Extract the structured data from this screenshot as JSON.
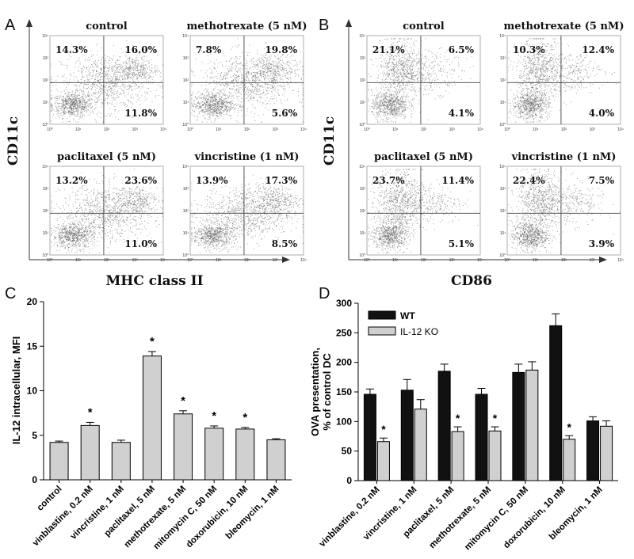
{
  "panel_letters": [
    "A",
    "B",
    "C",
    "D"
  ],
  "chart_data": [
    {
      "panel": "A",
      "type": "scatter",
      "description_axis_y": "CD11c",
      "xlabel": "MHC class II",
      "ylabel": "CD11c",
      "axis_ticks": [
        "10⁰",
        "10¹",
        "10²",
        "10³",
        "10⁴"
      ],
      "subplots": [
        {
          "title": "control",
          "quadrants": {
            "upper_left": "14.3%",
            "upper_right": "16.0%",
            "lower_right": "11.8%"
          }
        },
        {
          "title": "methotrexate (5 nM)",
          "quadrants": {
            "upper_left": "7.8%",
            "upper_right": "19.8%",
            "lower_right": "5.6%"
          }
        },
        {
          "title": "paclitaxel (5 nM)",
          "quadrants": {
            "upper_left": "13.2%",
            "upper_right": "23.6%",
            "lower_right": "11.0%"
          }
        },
        {
          "title": "vincristine (1 nM)",
          "quadrants": {
            "upper_left": "13.9%",
            "upper_right": "17.3%",
            "lower_right": "8.5%"
          }
        }
      ]
    },
    {
      "panel": "B",
      "type": "scatter",
      "xlabel": "CD86",
      "ylabel": "CD11c",
      "axis_ticks": [
        "10⁰",
        "10¹",
        "10²",
        "10³",
        "10⁴"
      ],
      "subplots": [
        {
          "title": "control",
          "quadrants": {
            "upper_left": "21.1%",
            "upper_right": "6.5%",
            "lower_right": "4.1%"
          }
        },
        {
          "title": "methotrexate (5 nM)",
          "quadrants": {
            "upper_left": "10.3%",
            "upper_right": "12.4%",
            "lower_right": "4.0%"
          }
        },
        {
          "title": "paclitaxel (5 nM)",
          "quadrants": {
            "upper_left": "23.7%",
            "upper_right": "11.4%",
            "lower_right": "5.1%"
          }
        },
        {
          "title": "vincristine (1 nM)",
          "quadrants": {
            "upper_left": "22.4%",
            "upper_right": "7.5%",
            "lower_right": "3.9%"
          }
        }
      ]
    },
    {
      "panel": "C",
      "type": "bar",
      "title": "",
      "xlabel": "",
      "ylabel": "IL-12 intracellular, MFI",
      "ylim": [
        0,
        20
      ],
      "yticks": [
        0,
        5,
        10,
        15,
        20
      ],
      "categories": [
        "control",
        "vinblastine, 0.2 nM",
        "vincristine, 1 nM",
        "paclitaxel, 5 nM",
        "methotrexate, 5 nM",
        "mitomycin C, 50 nM",
        "doxorubicin, 10 nM",
        "bleomycin, 1 nM"
      ],
      "values": [
        4.2,
        6.1,
        4.2,
        13.9,
        7.4,
        5.8,
        5.7,
        4.5
      ],
      "errors": [
        0.15,
        0.35,
        0.25,
        0.5,
        0.35,
        0.25,
        0.18,
        0.12
      ],
      "significant": [
        false,
        true,
        false,
        true,
        true,
        true,
        true,
        false
      ],
      "significance_marker": "*",
      "bar_color": "#d0d0d0"
    },
    {
      "panel": "D",
      "type": "bar",
      "title": "",
      "xlabel": "",
      "ylabel": "OVA presentation, % of control DC",
      "ylabel_lines": [
        "OVA presentation,",
        "% of control DC"
      ],
      "ylim": [
        0,
        300
      ],
      "yticks": [
        0,
        50,
        100,
        150,
        200,
        250,
        300
      ],
      "categories": [
        "vinblastine, 0.2 nM",
        "vincristine, 1 nM",
        "paclitaxel, 5 nM",
        "methotrexate, 5 nM",
        "mitomycin C, 50 nM",
        "doxorubicin, 10 nM",
        "bleomycin, 1 nM"
      ],
      "series": [
        {
          "name": "WT",
          "color": "#111111",
          "values": [
            146,
            153,
            185,
            146,
            183,
            262,
            101
          ],
          "errors": [
            9,
            18,
            12,
            10,
            14,
            20,
            7
          ],
          "significant": [
            false,
            false,
            false,
            false,
            false,
            false,
            false
          ]
        },
        {
          "name": "IL-12 KO",
          "color": "#d0d0d0",
          "values": [
            66,
            121,
            83,
            84,
            187,
            70,
            92
          ],
          "errors": [
            6,
            16,
            8,
            7,
            14,
            6,
            9
          ],
          "significant": [
            true,
            false,
            true,
            true,
            false,
            true,
            false
          ]
        }
      ],
      "significance_marker": "*",
      "legend_position": "top-left"
    }
  ]
}
